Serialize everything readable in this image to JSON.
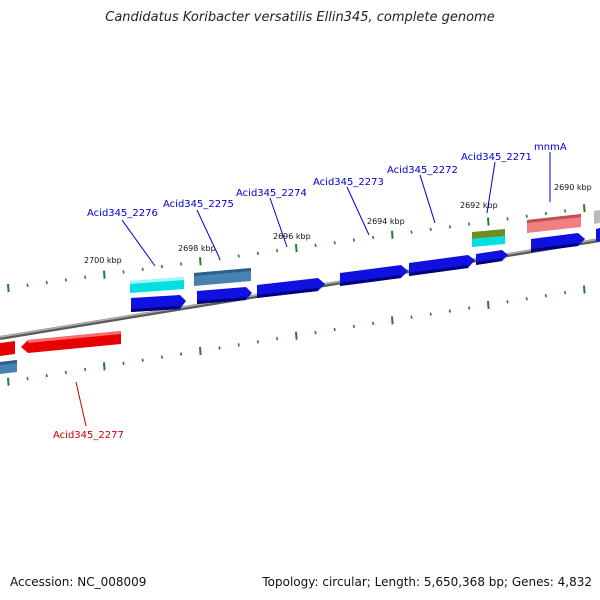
{
  "title": "Candidatus Koribacter versatilis Ellin345, complete genome",
  "accession": "Accession: NC_008009",
  "stats": "Topology: circular; Length: 5,650,368 bp; Genes: 4,832",
  "colors": {
    "backbone": "#8a8a8a",
    "tick": "#2a7a2a",
    "cds_forward": "#1010e0",
    "cds_reverse_red": "#e60000",
    "gene_cyan": "#00e0e0",
    "gene_steel": "#4682b4",
    "gene_olive": "#6b8e23",
    "gene_pink": "#f08080",
    "label_blue": "#0000cc",
    "label_red": "#cc0000"
  },
  "position_labels": [
    "2700 kbp",
    "2698 kbp",
    "2696 kbp",
    "2694 kbp",
    "2692 kbp",
    "2690 kbp"
  ],
  "gene_labels": [
    {
      "text": "Acid345_2276",
      "color": "#0000cc"
    },
    {
      "text": "Acid345_2275",
      "color": "#0000cc"
    },
    {
      "text": "Acid345_2274",
      "color": "#0000cc"
    },
    {
      "text": "Acid345_2273",
      "color": "#0000cc"
    },
    {
      "text": "Acid345_2272",
      "color": "#0000cc"
    },
    {
      "text": "Acid345_2271",
      "color": "#0000cc"
    },
    {
      "text": "mnmA",
      "color": "#0000cc"
    },
    {
      "text": "Acid345_2277",
      "color": "#cc0000"
    }
  ]
}
